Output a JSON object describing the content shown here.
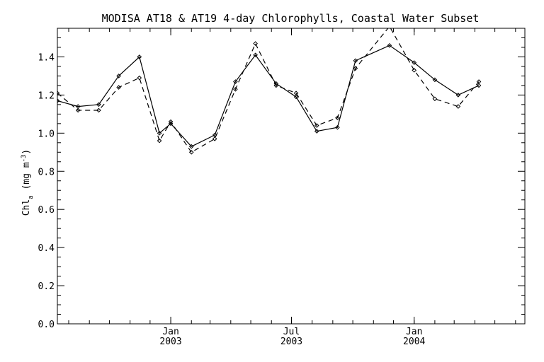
{
  "chart_data": {
    "type": "line",
    "title": "MODISA AT18 & AT19 4-day Chlorophylls, Coastal Water Subset",
    "ylabel": "Chl",
    "ylabel_sub": "a",
    "ylabel_unit": "(mg m",
    "ylabel_unit_sup": "-3",
    "ylabel_unit_close": ")",
    "xlabel": "",
    "ylim": [
      0.0,
      1.55
    ],
    "xlim": [
      "2002-07-15",
      "2004-06-15"
    ],
    "grid": false,
    "legend": "none",
    "y_ticks": [
      "0.0",
      "0.2",
      "0.4",
      "0.6",
      "0.8",
      "1.0",
      "1.2",
      "1.4"
    ],
    "x_ticks": [
      {
        "date": "2003-01-01",
        "label": "Jan",
        "year": "2003"
      },
      {
        "date": "2003-07-01",
        "label": "Jul",
        "year": "2003"
      },
      {
        "date": "2004-01-01",
        "label": "Jan",
        "year": "2004"
      }
    ],
    "series": [
      {
        "style": "solid",
        "color": "#000000",
        "points": [
          {
            "x": "2002-07-15",
            "y": 1.17
          },
          {
            "x": "2002-08-15",
            "y": 1.14
          },
          {
            "x": "2002-09-15",
            "y": 1.15
          },
          {
            "x": "2002-10-15",
            "y": 1.3
          },
          {
            "x": "2002-11-15",
            "y": 1.4
          },
          {
            "x": "2002-12-15",
            "y": 1.0
          },
          {
            "x": "2003-01-01",
            "y": 1.05
          },
          {
            "x": "2003-02-01",
            "y": 0.93
          },
          {
            "x": "2003-03-08",
            "y": 0.99
          },
          {
            "x": "2003-04-08",
            "y": 1.27
          },
          {
            "x": "2003-05-08",
            "y": 1.41
          },
          {
            "x": "2003-06-08",
            "y": 1.26
          },
          {
            "x": "2003-07-08",
            "y": 1.19
          },
          {
            "x": "2003-08-08",
            "y": 1.01
          },
          {
            "x": "2003-09-08",
            "y": 1.03
          },
          {
            "x": "2003-10-05",
            "y": 1.38
          },
          {
            "x": "2003-11-25",
            "y": 1.46
          },
          {
            "x": "2004-01-01",
            "y": 1.37
          },
          {
            "x": "2004-02-01",
            "y": 1.28
          },
          {
            "x": "2004-03-07",
            "y": 1.2
          },
          {
            "x": "2004-04-07",
            "y": 1.25
          }
        ]
      },
      {
        "style": "dashed",
        "color": "#000000",
        "points": [
          {
            "x": "2002-07-15",
            "y": 1.21
          },
          {
            "x": "2002-08-15",
            "y": 1.12
          },
          {
            "x": "2002-09-15",
            "y": 1.12
          },
          {
            "x": "2002-10-15",
            "y": 1.24
          },
          {
            "x": "2002-11-15",
            "y": 1.29
          },
          {
            "x": "2002-12-15",
            "y": 0.96
          },
          {
            "x": "2003-01-01",
            "y": 1.06
          },
          {
            "x": "2003-02-01",
            "y": 0.9
          },
          {
            "x": "2003-03-08",
            "y": 0.97
          },
          {
            "x": "2003-04-08",
            "y": 1.23
          },
          {
            "x": "2003-05-08",
            "y": 1.47
          },
          {
            "x": "2003-06-08",
            "y": 1.25
          },
          {
            "x": "2003-07-08",
            "y": 1.21
          },
          {
            "x": "2003-08-08",
            "y": 1.04
          },
          {
            "x": "2003-09-08",
            "y": 1.08
          },
          {
            "x": "2003-10-05",
            "y": 1.34
          },
          {
            "x": "2003-11-25",
            "y": 1.56
          },
          {
            "x": "2004-01-01",
            "y": 1.33
          },
          {
            "x": "2004-02-01",
            "y": 1.18
          },
          {
            "x": "2004-03-07",
            "y": 1.14
          },
          {
            "x": "2004-04-07",
            "y": 1.27
          }
        ]
      }
    ]
  }
}
